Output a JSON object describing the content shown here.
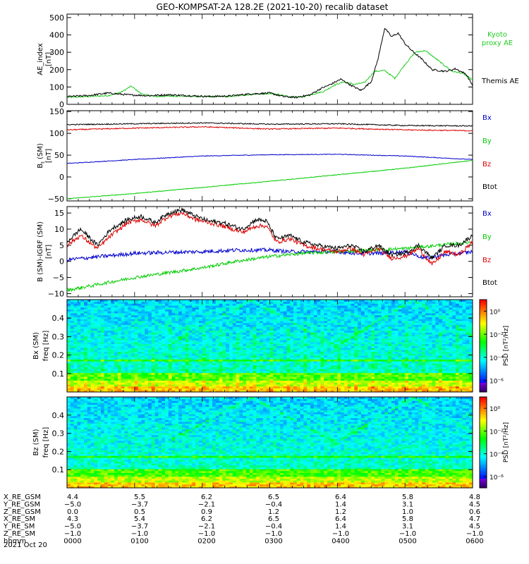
{
  "title": "GEO-KOMPSAT-2A 128.2E (2021-10-20) recalib dataset",
  "colors": {
    "bx": "#0000cc",
    "by": "#00cc00",
    "bz": "#dd0000",
    "btot": "#000000",
    "kyoto": "#22cc22"
  },
  "chart_data": [
    {
      "type": "line",
      "id": "ae",
      "ylabel": "AE_index\n[nT]",
      "ylim": [
        0,
        520
      ],
      "yticks": [
        0,
        100,
        200,
        300,
        400,
        500
      ],
      "x_unit": "hours from 0000 UT",
      "xlim": [
        0,
        6
      ],
      "legend_placement": "right",
      "series": [
        {
          "name": "Kyoto\nproxy AE",
          "color_key": "kyoto",
          "x": [
            0,
            0.3,
            0.6,
            0.8,
            0.95,
            1.1,
            1.3,
            1.6,
            2.0,
            2.4,
            2.8,
            3.1,
            3.3,
            3.5,
            3.65,
            3.8,
            3.95,
            4.1,
            4.25,
            4.4,
            4.55,
            4.7,
            4.85,
            5.0,
            5.15,
            5.3,
            5.5,
            5.7,
            5.85,
            6.0
          ],
          "values": [
            40,
            45,
            50,
            70,
            105,
            60,
            45,
            48,
            45,
            45,
            60,
            60,
            40,
            45,
            60,
            75,
            110,
            130,
            115,
            125,
            190,
            195,
            150,
            230,
            300,
            310,
            250,
            190,
            180,
            140
          ]
        },
        {
          "name": "Themis AE",
          "color_key": "btot",
          "x": [
            0,
            0.3,
            0.6,
            0.9,
            1.2,
            1.5,
            1.8,
            2.1,
            2.4,
            2.7,
            3.0,
            3.2,
            3.4,
            3.6,
            3.75,
            3.9,
            4.05,
            4.2,
            4.35,
            4.5,
            4.6,
            4.7,
            4.8,
            4.9,
            5.0,
            5.1,
            5.25,
            5.4,
            5.6,
            5.75,
            5.9,
            6.0
          ],
          "values": [
            45,
            50,
            65,
            55,
            50,
            55,
            50,
            45,
            48,
            60,
            65,
            45,
            40,
            55,
            90,
            115,
            145,
            110,
            80,
            130,
            260,
            440,
            390,
            410,
            350,
            310,
            260,
            200,
            190,
            205,
            175,
            110
          ]
        }
      ]
    },
    {
      "type": "line",
      "id": "bsm",
      "ylabel": "B (SM)\n[nT]",
      "ylabel_sub": "t",
      "ylim": [
        -55,
        152
      ],
      "yticks": [
        -50,
        0,
        50,
        100,
        150
      ],
      "xlim": [
        0,
        6
      ],
      "legend_placement": "right",
      "series": [
        {
          "name": "Bx",
          "color_key": "bx",
          "x": [
            0,
            1,
            2,
            3,
            4,
            5,
            6
          ],
          "values": [
            31,
            40,
            48,
            51,
            52,
            48,
            40
          ]
        },
        {
          "name": "By",
          "color_key": "by",
          "x": [
            0,
            1,
            2,
            3,
            4,
            5,
            6
          ],
          "values": [
            -50,
            -38,
            -24,
            -10,
            5,
            20,
            38
          ]
        },
        {
          "name": "Bz",
          "color_key": "bz",
          "x": [
            0,
            1,
            2,
            3,
            4,
            5,
            6
          ],
          "values": [
            108,
            112,
            115,
            110,
            112,
            108,
            106
          ]
        },
        {
          "name": "Btot",
          "color_key": "btot",
          "x": [
            0,
            1,
            2,
            3,
            4,
            5,
            6
          ],
          "values": [
            120,
            122,
            124,
            121,
            122,
            118,
            117
          ]
        }
      ]
    },
    {
      "type": "line",
      "id": "bigrf",
      "ylabel": "B (SM)-IGRF (SM)\n[nT]",
      "ylim": [
        -11,
        17
      ],
      "yticks": [
        -10,
        -5,
        0,
        5,
        10,
        15
      ],
      "xlim": [
        0,
        6
      ],
      "legend_placement": "right",
      "series": [
        {
          "name": "Bx",
          "color_key": "bx",
          "x": [
            0,
            0.5,
            1.0,
            1.5,
            2.0,
            2.5,
            2.8,
            3.0,
            3.3,
            3.6,
            4.0,
            4.3,
            4.6,
            5.0,
            5.3,
            5.6,
            6.0
          ],
          "values": [
            0.5,
            1.5,
            2.5,
            2.8,
            3.0,
            3.5,
            3.5,
            3.5,
            3.0,
            3.0,
            3.0,
            2.5,
            2.5,
            3.0,
            1.0,
            2.0,
            3.0
          ]
        },
        {
          "name": "By",
          "color_key": "by",
          "x": [
            0,
            0.5,
            1.0,
            1.5,
            2.0,
            2.5,
            3.0,
            3.5,
            4.0,
            4.5,
            5.0,
            5.5,
            6.0
          ],
          "values": [
            -9,
            -7,
            -5,
            -3.5,
            -2,
            0,
            1.5,
            2.5,
            3,
            3.5,
            4,
            5,
            6
          ]
        },
        {
          "name": "Bz",
          "color_key": "bz",
          "x": [
            0,
            0.2,
            0.45,
            0.65,
            0.9,
            1.1,
            1.3,
            1.5,
            1.7,
            1.9,
            2.1,
            2.3,
            2.6,
            2.8,
            2.95,
            3.1,
            3.3,
            3.5,
            3.7,
            4.0,
            4.2,
            4.4,
            4.6,
            4.8,
            5.0,
            5.2,
            5.4,
            5.6,
            5.8,
            6.0
          ],
          "values": [
            5,
            8,
            4,
            8,
            12,
            13,
            11,
            14,
            15,
            13,
            12,
            11,
            9,
            11,
            11,
            6,
            7,
            5,
            4,
            3,
            4,
            2,
            4,
            1,
            1.5,
            4,
            -1,
            3,
            2,
            6
          ]
        },
        {
          "name": "Btot",
          "color_key": "btot",
          "x": [
            0,
            0.2,
            0.45,
            0.65,
            0.9,
            1.1,
            1.3,
            1.5,
            1.7,
            1.9,
            2.1,
            2.3,
            2.6,
            2.8,
            2.95,
            3.1,
            3.3,
            3.5,
            3.7,
            4.0,
            4.2,
            4.4,
            4.6,
            4.8,
            5.0,
            5.2,
            5.4,
            5.6,
            5.8,
            6.0
          ],
          "values": [
            6,
            10,
            5,
            10,
            13,
            14,
            12,
            15,
            16,
            14,
            12.5,
            12,
            10,
            13,
            12.5,
            7,
            8,
            6,
            5,
            4,
            5,
            3,
            5,
            2,
            2.5,
            5,
            1,
            5,
            5,
            8
          ]
        }
      ]
    },
    {
      "type": "heatmap",
      "id": "spec-bx",
      "component": "Bx (SM)",
      "ylabel": "freq [Hz]",
      "ylim": [
        0,
        0.5
      ],
      "yticks": [
        0.1,
        0.2,
        0.3,
        0.4
      ],
      "xlim": [
        0,
        6
      ],
      "colorbar": {
        "label": "PSD [nT²/Hz]",
        "ticks": [
          "10⁰",
          "10⁻²",
          "10⁻⁴",
          "10⁻⁶"
        ],
        "range_log10": [
          -7,
          1
        ]
      }
    },
    {
      "type": "heatmap",
      "id": "spec-bz",
      "component": "Bz (SM)",
      "ylabel": "freq [Hz]",
      "ylim": [
        0,
        0.5
      ],
      "yticks": [
        0.1,
        0.2,
        0.3,
        0.4
      ],
      "xlim": [
        0,
        6
      ],
      "colorbar": {
        "label": "PSD [nT²/Hz]",
        "ticks": [
          "10⁰",
          "10⁻²",
          "10⁻⁴",
          "10⁻⁶"
        ],
        "range_log10": [
          -7,
          1
        ]
      }
    }
  ],
  "ephemeris": {
    "rows": [
      {
        "label": "X_RE_GSM",
        "values": [
          "4.4",
          "5.5",
          "6.2",
          "6.5",
          "6.4",
          "5.8",
          "4.8"
        ]
      },
      {
        "label": "Y_RE_GSM",
        "values": [
          "−5.0",
          "−3.7",
          "−2.1",
          "−0.4",
          "1.4",
          "3.1",
          "4.5"
        ]
      },
      {
        "label": "Z_RE_GSM",
        "values": [
          "0.0",
          "0.5",
          "0.9",
          "1.2",
          "1.2",
          "1.0",
          "0.6"
        ]
      },
      {
        "label": "X_RE_SM",
        "values": [
          "4.3",
          "5.4",
          "6.2",
          "6.5",
          "6.4",
          "5.8",
          "4.7"
        ]
      },
      {
        "label": "Y_RE_SM",
        "values": [
          "−5.0",
          "−3.7",
          "−2.1",
          "−0.4",
          "1.4",
          "3.1",
          "4.5"
        ]
      },
      {
        "label": "Z_RE_SM",
        "values": [
          "−1.0",
          "−1.0",
          "−1.0",
          "−1.0",
          "−1.0",
          "−1.0",
          "−1.0"
        ]
      },
      {
        "label": "hhmm",
        "values": [
          "0000",
          "0100",
          "0200",
          "0300",
          "0400",
          "0500",
          "0600"
        ]
      }
    ],
    "date": "2021 Oct 20"
  }
}
